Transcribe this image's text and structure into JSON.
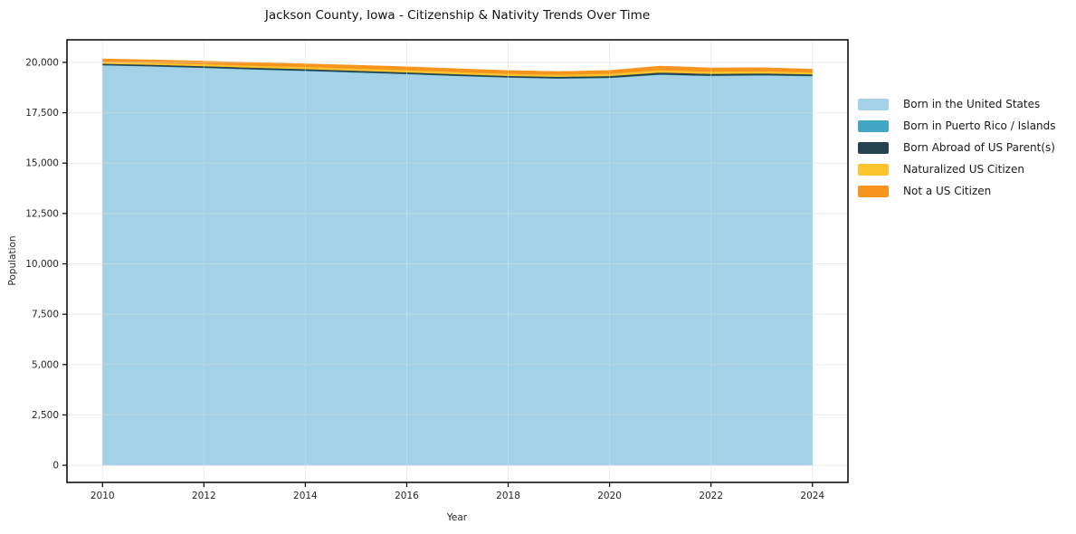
{
  "chart_data": {
    "type": "area",
    "stacked": true,
    "title": "Jackson County, Iowa - Citizenship & Nativity Trends Over Time",
    "xlabel": "Year",
    "ylabel": "Population",
    "x": [
      2010,
      2011,
      2012,
      2013,
      2014,
      2015,
      2016,
      2017,
      2018,
      2019,
      2020,
      2021,
      2022,
      2023,
      2024
    ],
    "series": [
      {
        "name": "Born in the United States",
        "color": "#a2d1e8",
        "values": [
          19860,
          19800,
          19730,
          19650,
          19580,
          19500,
          19420,
          19330,
          19250,
          19200,
          19230,
          19390,
          19330,
          19360,
          19320
        ]
      },
      {
        "name": "Born in Puerto Rico / Islands",
        "color": "#41a7c4",
        "values": [
          12,
          12,
          13,
          14,
          14,
          15,
          15,
          14,
          14,
          15,
          16,
          18,
          17,
          16,
          15
        ]
      },
      {
        "name": "Born Abroad of US Parent(s)",
        "color": "#27424f",
        "values": [
          70,
          72,
          75,
          78,
          80,
          80,
          78,
          76,
          75,
          78,
          85,
          95,
          90,
          85,
          80
        ]
      },
      {
        "name": "Naturalized US Citizen",
        "color": "#fcc42c",
        "values": [
          95,
          98,
          100,
          102,
          105,
          108,
          110,
          108,
          105,
          104,
          110,
          125,
          118,
          112,
          100
        ]
      },
      {
        "name": "Not a US Citizen",
        "color": "#f7941e",
        "values": [
          135,
          140,
          145,
          148,
          150,
          155,
          158,
          156,
          152,
          150,
          158,
          185,
          172,
          165,
          150
        ]
      }
    ],
    "x_ticks": [
      2010,
      2012,
      2014,
      2016,
      2018,
      2020,
      2022,
      2024
    ],
    "x_tick_labels": [
      "2010",
      "2012",
      "2014",
      "2016",
      "2018",
      "2020",
      "2022",
      "2024"
    ],
    "y_ticks": [
      0,
      2500,
      5000,
      7500,
      10000,
      12500,
      15000,
      17500,
      20000
    ],
    "y_tick_labels": [
      "0",
      "2,500",
      "5,000",
      "7,500",
      "10,000",
      "12,500",
      "15,000",
      "17,500",
      "20,000"
    ],
    "xlim": [
      2009.3,
      2024.7
    ],
    "ylim": [
      -850,
      21120
    ],
    "grid": true,
    "legend_position": "right-outside",
    "style": {
      "grid_color": "#dcdcdc",
      "grid_opacity": 0.55,
      "spine_color": "#000000",
      "background": "#ffffff"
    }
  }
}
